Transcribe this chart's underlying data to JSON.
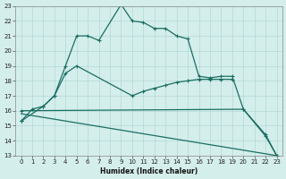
{
  "xlabel": "Humidex (Indice chaleur)",
  "bg_color": "#d4eeec",
  "grid_color": "#aad4d0",
  "line_color": "#1a6e62",
  "xlim_min": -0.5,
  "xlim_max": 23.5,
  "ylim_min": 13,
  "ylim_max": 23,
  "curve1_x": [
    0,
    1,
    2,
    3,
    4,
    5,
    6,
    7,
    9,
    10,
    11,
    12,
    13,
    14,
    15,
    16,
    17,
    18,
    19,
    20,
    22,
    23
  ],
  "curve1_y": [
    15.3,
    16.1,
    16.3,
    17.0,
    19.0,
    21.0,
    21.0,
    20.7,
    23.1,
    22.0,
    21.9,
    21.5,
    21.5,
    21.0,
    20.8,
    18.3,
    18.2,
    18.3,
    18.3,
    16.1,
    14.3,
    13.0
  ],
  "curve2_x": [
    0,
    2,
    3,
    4,
    5,
    10,
    11,
    12,
    13,
    14,
    15,
    16,
    17,
    18,
    19
  ],
  "curve2_y": [
    15.3,
    16.3,
    17.0,
    18.5,
    19.0,
    17.0,
    17.3,
    17.5,
    17.7,
    17.9,
    18.0,
    18.1,
    18.1,
    18.1,
    18.1
  ],
  "curve3_x": [
    0,
    20,
    22,
    23
  ],
  "curve3_y": [
    16.0,
    16.1,
    14.4,
    13.0
  ],
  "curve4_x": [
    0,
    23
  ],
  "curve4_y": [
    15.8,
    13.0
  ]
}
